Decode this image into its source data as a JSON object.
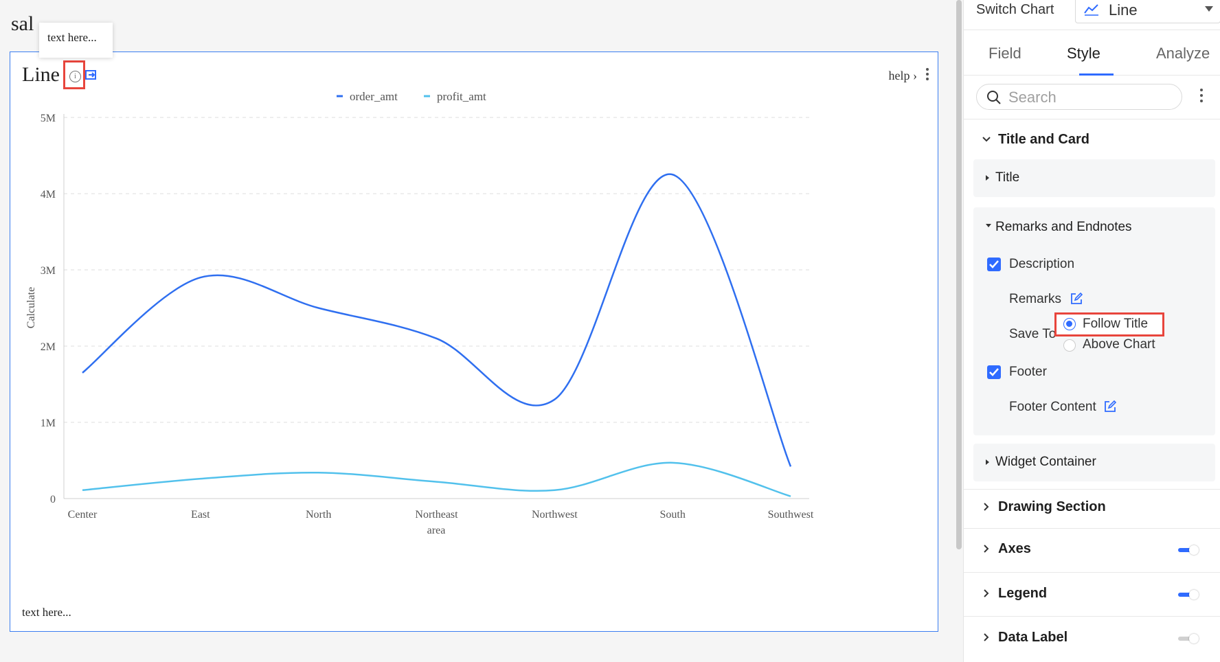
{
  "page": {
    "heading": "sal",
    "tooltip_text": "text here..."
  },
  "widget": {
    "title": "Line",
    "help_label": "help",
    "footer_text": "text here..."
  },
  "chart_data": {
    "type": "line",
    "categories": [
      "Center",
      "East",
      "North",
      "Northeast",
      "Northwest",
      "South",
      "Southwest"
    ],
    "series": [
      {
        "name": "order_amt",
        "values": [
          1650000,
          2900000,
          2500000,
          2100000,
          1300000,
          4250000,
          420000
        ],
        "color": "#2f6ff0"
      },
      {
        "name": "profit_amt",
        "values": [
          110000,
          260000,
          340000,
          220000,
          110000,
          470000,
          30000
        ],
        "color": "#52c1ec"
      }
    ],
    "xlabel": "area",
    "ylabel": "Calculate",
    "ylim": [
      0,
      5000000
    ],
    "yticks": [
      "0",
      "1M",
      "2M",
      "3M",
      "4M",
      "5M"
    ],
    "grid": true,
    "legend_position": "top"
  },
  "panel": {
    "switch_chart_label": "Switch Chart",
    "chart_type": "Line",
    "tabs": [
      "Field",
      "Style",
      "Analyze"
    ],
    "active_tab": "Style",
    "search_placeholder": "Search",
    "sections": {
      "title_and_card": "Title and Card",
      "title": "Title",
      "remarks_and_endnotes": "Remarks and Endnotes",
      "description": "Description",
      "remarks": "Remarks",
      "save_to": "Save To",
      "follow_title": "Follow Title",
      "above_chart": "Above Chart",
      "footer": "Footer",
      "footer_content": "Footer Content",
      "widget_container": "Widget Container",
      "drawing_section": "Drawing Section",
      "axes": "Axes",
      "legend": "Legend",
      "data_label": "Data Label"
    },
    "toggles": {
      "axes": true,
      "legend": true,
      "data_label": false
    },
    "accent_color": "#2f6bff",
    "highlight_color": "#e8453c"
  }
}
